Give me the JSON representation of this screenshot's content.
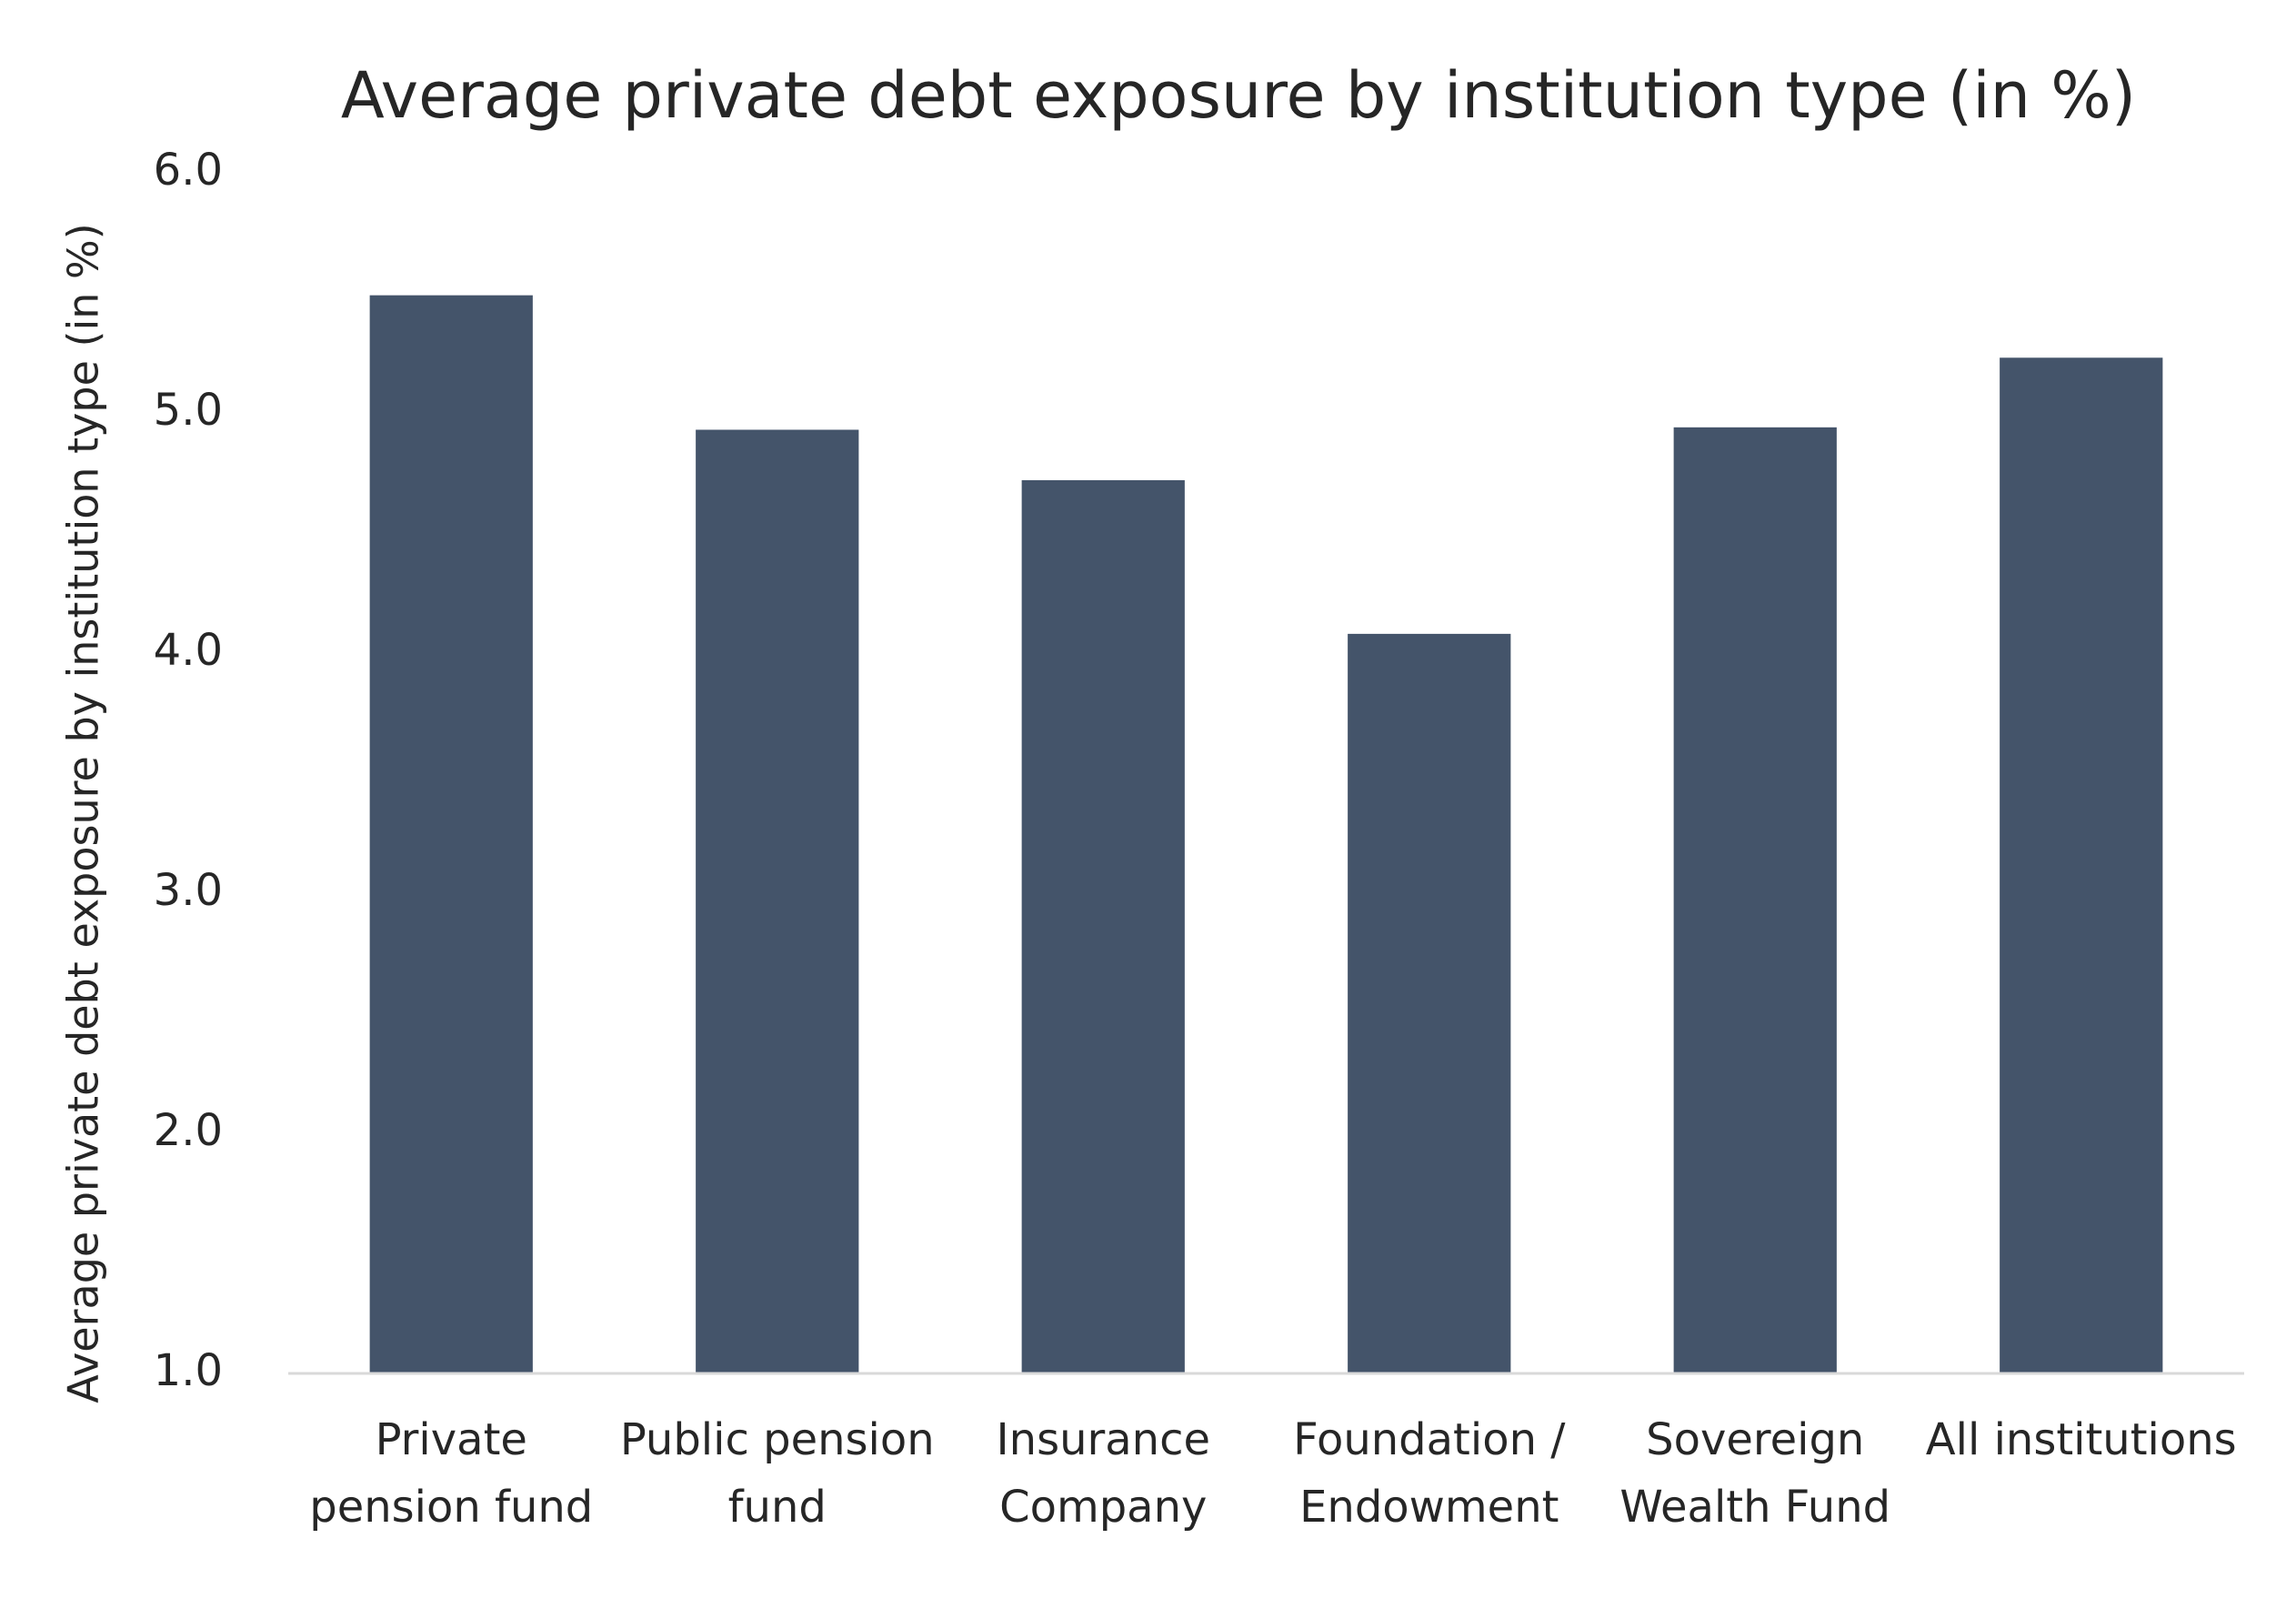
{
  "chart_data": {
    "type": "bar",
    "title": "Average private debt exposure by institution type (in %)",
    "y_label": "Average private debt exposure by institution type (in %)",
    "categories": [
      "Private\npension fund",
      "Public pension\nfund",
      "Insurance\nCompany",
      "Foundation /\nEndowment",
      "Sovereign\nWealth Fund",
      "All institutions"
    ],
    "values": [
      5.49,
      4.93,
      4.72,
      4.08,
      4.94,
      5.23
    ],
    "color": "#44546a",
    "ylim": [
      1.0,
      6.0
    ],
    "yticks": [
      {
        "value": 1,
        "label": "1.0"
      },
      {
        "value": 2,
        "label": "2.0"
      },
      {
        "value": 3,
        "label": "3.0"
      },
      {
        "value": 4,
        "label": "4.0"
      },
      {
        "value": 5,
        "label": "5.0"
      },
      {
        "value": 6,
        "label": "6.0"
      }
    ],
    "grid": false
  }
}
